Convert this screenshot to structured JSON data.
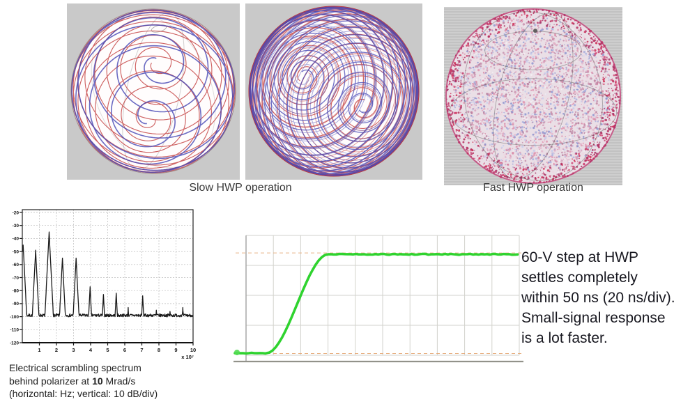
{
  "figure": {
    "captions": {
      "slow": "Slow HWP operation",
      "fast": "Fast HWP operation"
    },
    "spheres": {
      "panel_bg": "#c9c9c9",
      "trace_red": "#c64545",
      "trace_blue": "#4646b4",
      "rim_red": "#cc2233",
      "wire_color": "#8a8a8a",
      "speckle_base": "#eadfe6",
      "speckle_inner": [
        "#eed6e0",
        "#e3b9cc",
        "#d7a3bd",
        "#c791ad",
        "#aab0dd",
        "#8f97cf",
        "#c7cdeb",
        "#f3eef3",
        "#d88ca8",
        "#b87f9e",
        "#e29ab4"
      ],
      "speckle_rim": [
        "#c23a6a",
        "#b52f5e",
        "#d14b78",
        "#a83366",
        "#cf2d55"
      ]
    }
  },
  "spectrum_caption": {
    "line1": "Electrical scrambling spectrum",
    "line2_pre": "behind polarizer at ",
    "line2_bold": "10",
    "line2_post": " Mrad/s",
    "line3": "(horizontal: Hz; vertical: 10 dB/div)"
  },
  "scope_note": {
    "lines": [
      "60-V step at HWP",
      "settles completely",
      "within 50 ns (20 ns/div).",
      "Small-signal response",
      "is a lot faster."
    ]
  },
  "chart_data": [
    {
      "id": "electrical-scrambling-spectrum",
      "type": "line",
      "title": "Electrical scrambling spectrum behind polarizer at 10 Mrad/s",
      "xlabel": "Hz",
      "ylabel": "10 dB/div",
      "x_multiplier_label": "x 10⁷",
      "xlim": [
        0,
        10
      ],
      "ylim": [
        -120,
        -20
      ],
      "xticks": [
        1,
        2,
        3,
        4,
        5,
        6,
        7,
        8,
        9,
        10
      ],
      "yticks": [
        -20,
        -30,
        -40,
        -50,
        -60,
        -70,
        -80,
        -90,
        -100,
        -110,
        -120
      ],
      "grid": "dashed",
      "noise_floor_dB": -99,
      "peak_slope_dB_per_unit": 260,
      "peaks": [
        {
          "x": 0.05,
          "dB": -45
        },
        {
          "x": 0.78,
          "dB": -49
        },
        {
          "x": 1.57,
          "dB": -35
        },
        {
          "x": 2.35,
          "dB": -55
        },
        {
          "x": 3.15,
          "dB": -55
        },
        {
          "x": 3.97,
          "dB": -77
        },
        {
          "x": 4.75,
          "dB": -83
        },
        {
          "x": 5.5,
          "dB": -82
        },
        {
          "x": 6.2,
          "dB": -93
        },
        {
          "x": 7.05,
          "dB": -84
        },
        {
          "x": 7.85,
          "dB": -95
        },
        {
          "x": 8.65,
          "dB": -96
        },
        {
          "x": 9.4,
          "dB": -93
        }
      ],
      "line_color": "#1a1a1a"
    },
    {
      "id": "hwp-step-response",
      "type": "line",
      "title": "60-V step at HWP settles completely within 50 ns",
      "time_per_div": "20 ns/div",
      "x_divisions": 10,
      "y_divisions": 4,
      "rise_start_div": 0.75,
      "settle_div": 3.0,
      "low_level_div_from_top": 3.93,
      "high_level_div_from_top": 0.63,
      "line_color": "#2fd32f",
      "marker_color": "#e6aa78",
      "grid_color": "#d2d2cc",
      "baseline_color": "#92928a"
    }
  ]
}
